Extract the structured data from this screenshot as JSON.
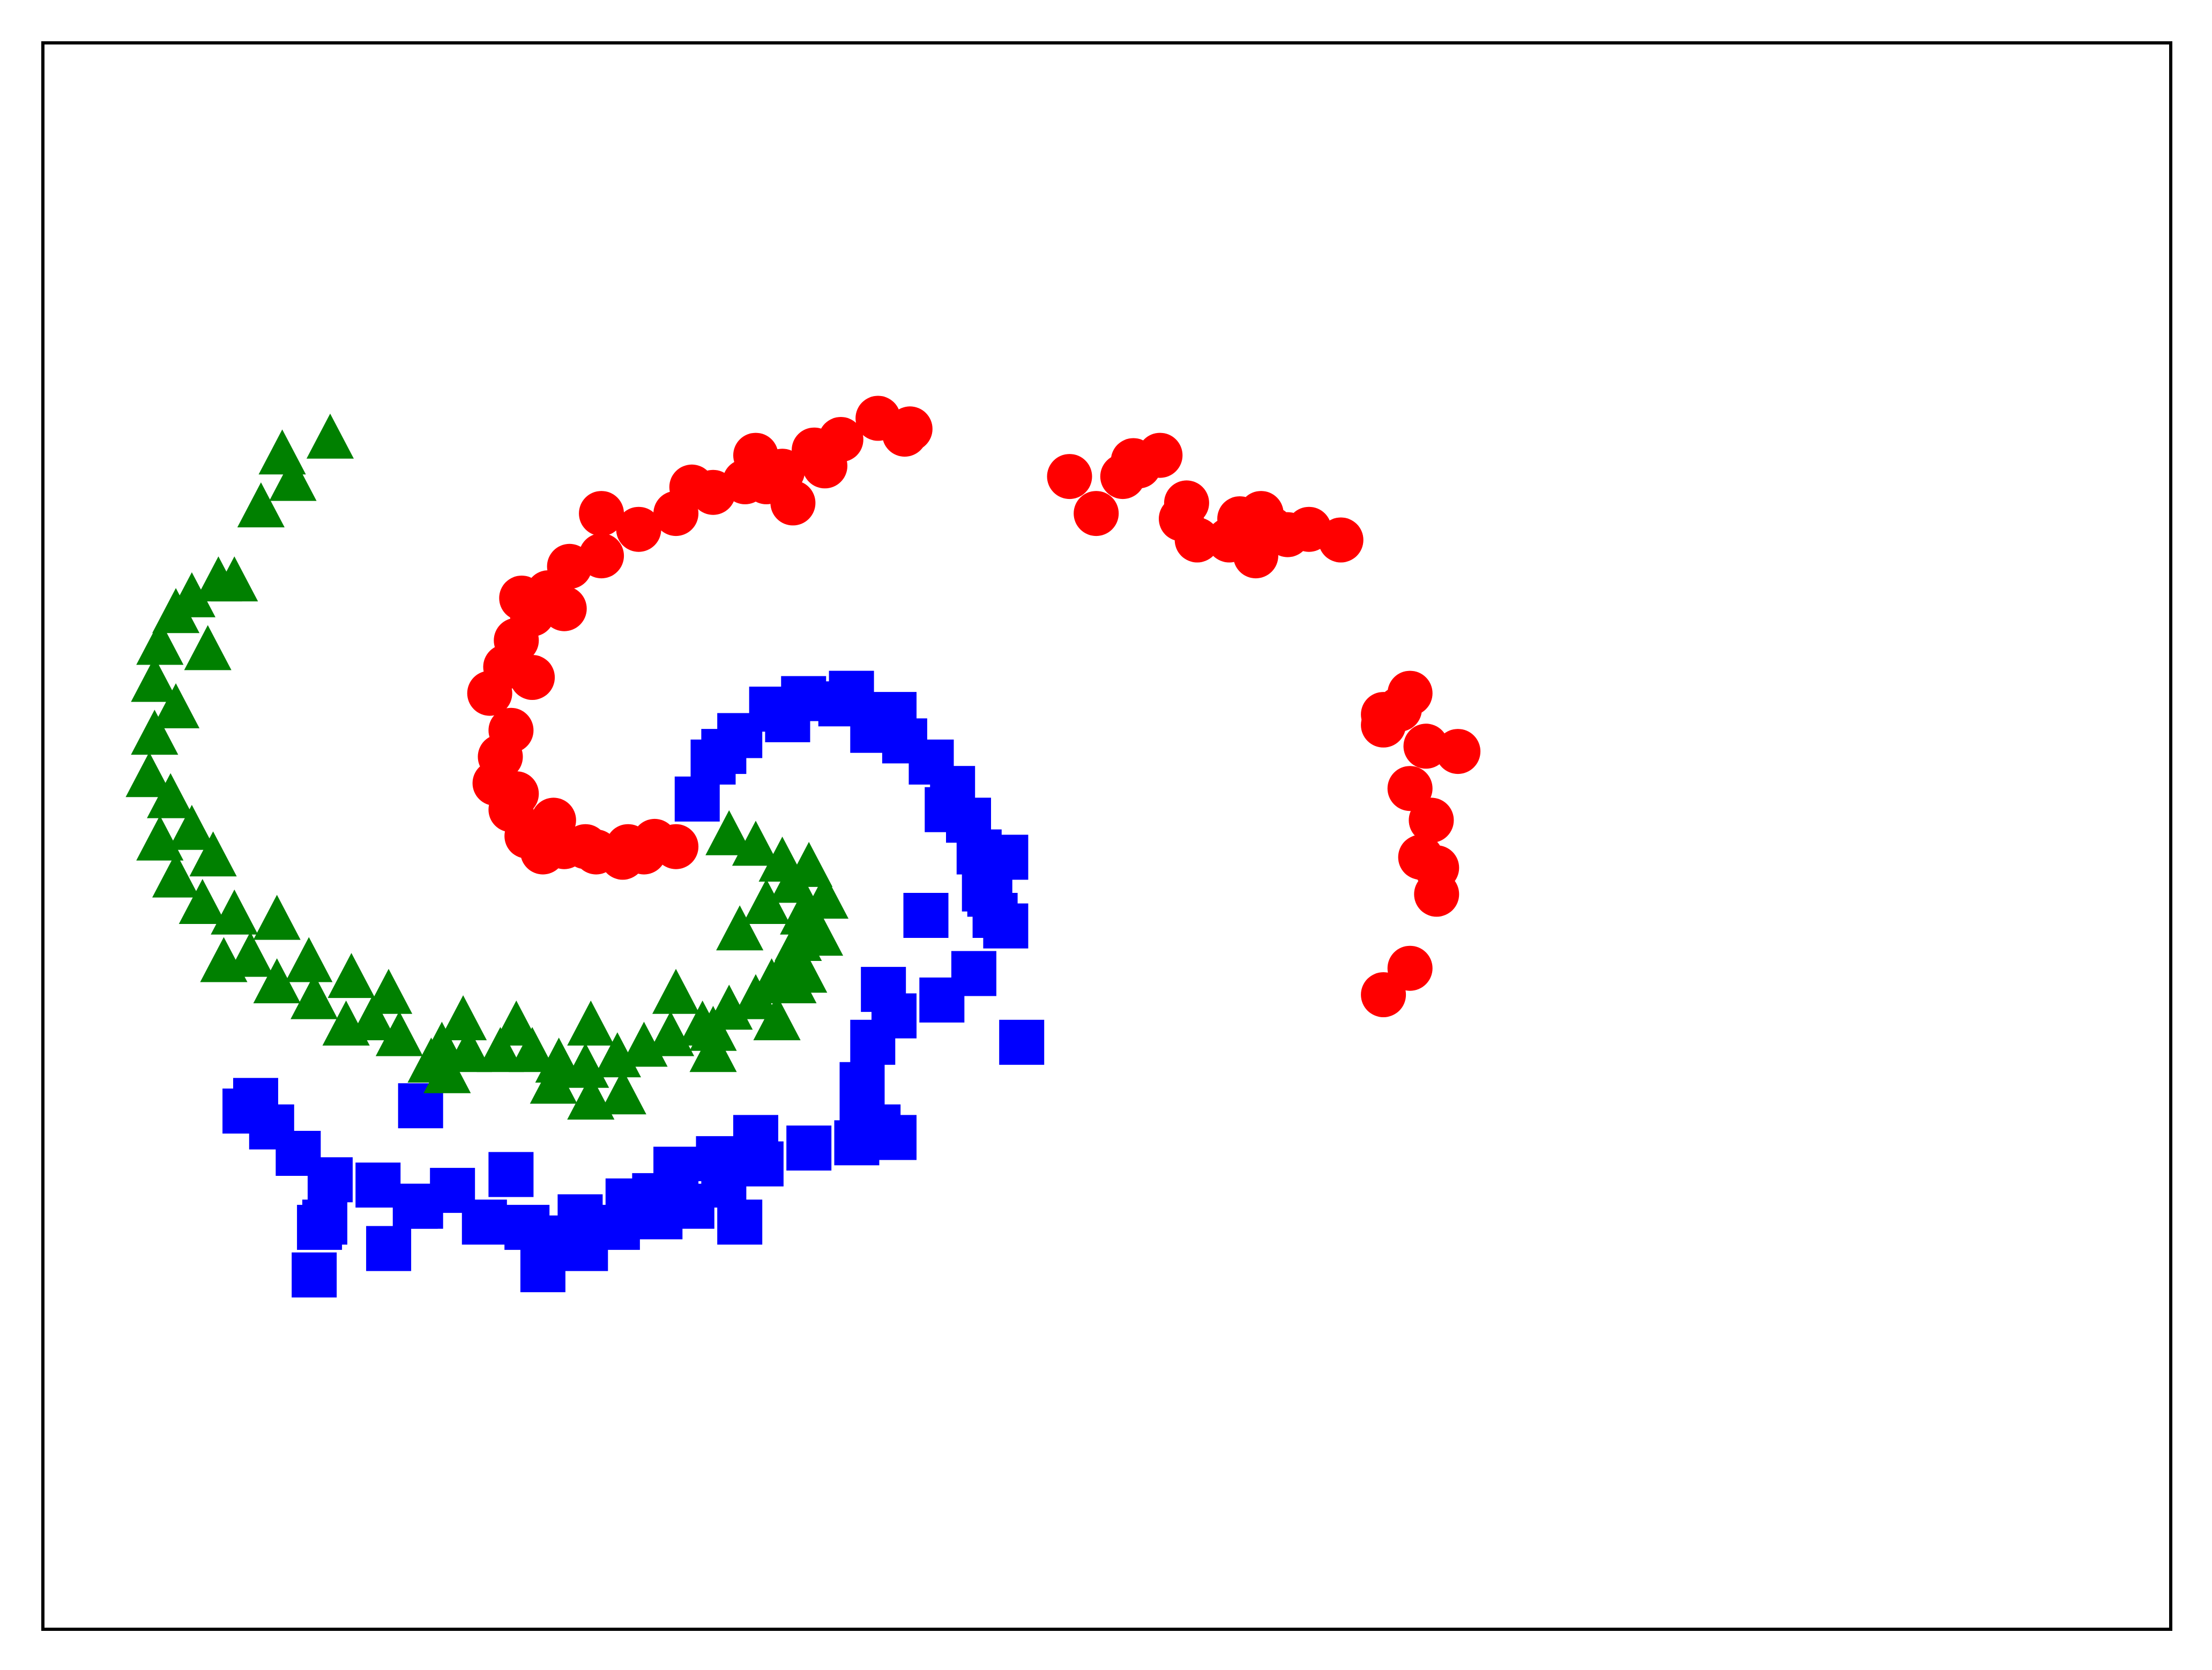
{
  "chart_data": {
    "type": "scatter",
    "title": "",
    "xlabel": "",
    "ylabel": "",
    "xlim": [
      -1.5,
      2.5
    ],
    "ylim": [
      -1.5,
      1.5
    ],
    "grid": false,
    "show_ticks": false,
    "legend": "none",
    "series": [
      {
        "marker": "circle",
        "color": "#ff0000",
        "points": [
          [
            -0.31,
            -0.02
          ],
          [
            -0.37,
            -0.03
          ],
          [
            -0.41,
            -0.04
          ],
          [
            -0.46,
            -0.03
          ],
          [
            -0.52,
            -0.02
          ],
          [
            -0.56,
            -0.03
          ],
          [
            -0.59,
            0.0
          ],
          [
            -0.62,
            0.05
          ],
          [
            -0.65,
            0.1
          ],
          [
            -0.64,
            0.15
          ],
          [
            -0.62,
            0.2
          ],
          [
            -0.66,
            0.27
          ],
          [
            -0.63,
            0.32
          ],
          [
            -0.61,
            0.37
          ],
          [
            -0.58,
            0.42
          ],
          [
            -0.55,
            0.46
          ],
          [
            -0.51,
            0.51
          ],
          [
            -0.45,
            0.53
          ],
          [
            -0.38,
            0.58
          ],
          [
            -0.31,
            0.61
          ],
          [
            -0.24,
            0.65
          ],
          [
            -0.18,
            0.67
          ],
          [
            -0.11,
            0.69
          ],
          [
            -0.05,
            0.73
          ],
          [
            0.0,
            0.75
          ],
          [
            0.07,
            0.79
          ],
          [
            0.12,
            0.76
          ],
          [
            -0.09,
            0.63
          ],
          [
            -0.28,
            0.66
          ],
          [
            -0.45,
            0.61
          ],
          [
            -0.6,
            0.45
          ],
          [
            -0.54,
            0.03
          ],
          [
            -0.35,
            -0.01
          ],
          [
            -0.14,
            0.67
          ],
          [
            -0.03,
            0.7
          ],
          [
            0.13,
            0.77
          ],
          [
            -0.16,
            0.72
          ],
          [
            -0.52,
            0.43
          ],
          [
            -0.58,
            0.3
          ],
          [
            -0.61,
            0.08
          ],
          [
            -0.48,
            -0.02
          ],
          [
            -0.4,
            -0.02
          ],
          [
            0.43,
            0.68
          ],
          [
            0.56,
            0.7
          ],
          [
            0.6,
            0.72
          ],
          [
            0.53,
            0.68
          ],
          [
            0.64,
            0.6
          ],
          [
            0.65,
            0.63
          ],
          [
            0.67,
            0.56
          ],
          [
            0.75,
            0.6
          ],
          [
            0.81,
            0.58
          ],
          [
            0.78,
            0.53
          ],
          [
            0.84,
            0.57
          ],
          [
            0.79,
            0.61
          ],
          [
            0.88,
            0.58
          ],
          [
            0.94,
            0.56
          ],
          [
            0.48,
            0.61
          ],
          [
            0.55,
            0.71
          ],
          [
            0.73,
            0.56
          ],
          [
            1.02,
            0.21
          ],
          [
            1.05,
            0.24
          ],
          [
            1.07,
            0.27
          ],
          [
            1.16,
            0.16
          ],
          [
            1.1,
            0.17
          ],
          [
            1.02,
            0.23
          ],
          [
            1.07,
            0.09
          ],
          [
            1.11,
            0.03
          ],
          [
            1.09,
            -0.04
          ],
          [
            1.12,
            -0.06
          ],
          [
            1.12,
            -0.11
          ],
          [
            1.07,
            -0.25
          ],
          [
            1.02,
            -0.3
          ]
        ]
      },
      {
        "marker": "square",
        "color": "#0000ff",
        "points": [
          [
            -0.27,
            0.07
          ],
          [
            -0.24,
            0.14
          ],
          [
            -0.19,
            0.19
          ],
          [
            -0.13,
            0.24
          ],
          [
            -0.07,
            0.26
          ],
          [
            0.0,
            0.25
          ],
          [
            0.06,
            0.2
          ],
          [
            0.12,
            0.18
          ],
          [
            0.17,
            0.14
          ],
          [
            0.21,
            0.09
          ],
          [
            0.24,
            0.03
          ],
          [
            0.26,
            -0.03
          ],
          [
            0.27,
            -0.1
          ],
          [
            0.29,
            -0.15
          ],
          [
            0.31,
            -0.17
          ],
          [
            0.25,
            -0.26
          ],
          [
            0.19,
            -0.31
          ],
          [
            0.1,
            -0.34
          ],
          [
            0.06,
            -0.39
          ],
          [
            0.04,
            -0.47
          ],
          [
            0.04,
            -0.53
          ],
          [
            0.03,
            -0.58
          ],
          [
            -0.06,
            -0.59
          ],
          [
            -0.15,
            -0.62
          ],
          [
            -0.22,
            -0.66
          ],
          [
            -0.28,
            -0.7
          ],
          [
            -0.34,
            -0.72
          ],
          [
            -0.42,
            -0.74
          ],
          [
            -0.48,
            -0.78
          ],
          [
            -0.54,
            -0.76
          ],
          [
            -0.59,
            -0.74
          ],
          [
            -0.67,
            -0.73
          ],
          [
            -0.73,
            -0.67
          ],
          [
            -0.79,
            -0.7
          ],
          [
            -0.87,
            -0.66
          ],
          [
            -0.96,
            -0.65
          ],
          [
            -1.02,
            -0.6
          ],
          [
            -1.07,
            -0.55
          ],
          [
            -1.1,
            -0.5
          ],
          [
            -0.79,
            -0.51
          ],
          [
            -0.97,
            -0.73
          ],
          [
            -0.99,
            -0.83
          ],
          [
            -0.8,
            -0.7
          ],
          [
            -0.56,
            -0.82
          ],
          [
            -0.49,
            -0.72
          ],
          [
            -0.4,
            -0.69
          ],
          [
            -0.31,
            -0.63
          ],
          [
            -0.23,
            -0.61
          ],
          [
            -0.16,
            -0.57
          ],
          [
            0.34,
            -0.39
          ],
          [
            0.28,
            -0.11
          ],
          [
            0.31,
            -0.04
          ],
          [
            0.1,
            -0.57
          ],
          [
            0.08,
            -0.29
          ],
          [
            0.2,
            0.05
          ],
          [
            -0.1,
            0.22
          ],
          [
            0.02,
            0.27
          ],
          [
            0.1,
            0.23
          ],
          [
            -0.22,
            0.16
          ],
          [
            0.16,
            -0.15
          ],
          [
            0.07,
            -0.55
          ],
          [
            -0.19,
            -0.73
          ],
          [
            -0.35,
            -0.68
          ],
          [
            -0.62,
            -0.64
          ],
          [
            -0.98,
            -0.74
          ],
          [
            -1.12,
            -0.52
          ],
          [
            -0.85,
            -0.78
          ]
        ]
      },
      {
        "marker": "triangle",
        "color": "#008000",
        "points": [
          [
            -0.21,
            0.0
          ],
          [
            -0.16,
            -0.02
          ],
          [
            -0.11,
            -0.05
          ],
          [
            -0.09,
            -0.09
          ],
          [
            -0.07,
            -0.15
          ],
          [
            -0.08,
            -0.2
          ],
          [
            -0.1,
            -0.24
          ],
          [
            -0.13,
            -0.28
          ],
          [
            -0.16,
            -0.31
          ],
          [
            -0.21,
            -0.33
          ],
          [
            -0.26,
            -0.36
          ],
          [
            -0.32,
            -0.38
          ],
          [
            -0.37,
            -0.4
          ],
          [
            -0.42,
            -0.42
          ],
          [
            -0.48,
            -0.44
          ],
          [
            -0.53,
            -0.43
          ],
          [
            -0.58,
            -0.41
          ],
          [
            -0.64,
            -0.41
          ],
          [
            -0.7,
            -0.41
          ],
          [
            -0.75,
            -0.4
          ],
          [
            -0.83,
            -0.38
          ],
          [
            -0.88,
            -0.35
          ],
          [
            -0.93,
            -0.36
          ],
          [
            -0.99,
            -0.31
          ],
          [
            -1.06,
            -0.28
          ],
          [
            -1.11,
            -0.23
          ],
          [
            -1.14,
            -0.15
          ],
          [
            -1.2,
            -0.13
          ],
          [
            -1.25,
            -0.08
          ],
          [
            -1.28,
            -0.01
          ],
          [
            -1.26,
            0.07
          ],
          [
            -1.3,
            0.11
          ],
          [
            -1.29,
            0.19
          ],
          [
            -1.25,
            0.24
          ],
          [
            -1.29,
            0.29
          ],
          [
            -1.28,
            0.36
          ],
          [
            -1.25,
            0.42
          ],
          [
            -1.22,
            0.45
          ],
          [
            -1.17,
            0.48
          ],
          [
            -1.14,
            0.48
          ],
          [
            -1.09,
            0.62
          ],
          [
            -1.05,
            0.72
          ],
          [
            -1.03,
            0.67
          ],
          [
            -0.96,
            0.75
          ],
          [
            -1.22,
            0.01
          ],
          [
            -1.18,
            -0.04
          ],
          [
            -1.06,
            -0.16
          ],
          [
            -1.0,
            -0.24
          ],
          [
            -0.85,
            -0.3
          ],
          [
            -0.71,
            -0.35
          ],
          [
            -0.61,
            -0.36
          ],
          [
            -0.47,
            -0.36
          ],
          [
            -0.31,
            -0.3
          ],
          [
            -0.19,
            -0.18
          ],
          [
            -0.14,
            -0.13
          ],
          [
            -0.06,
            -0.06
          ],
          [
            -0.03,
            -0.12
          ],
          [
            -0.04,
            -0.19
          ],
          [
            -0.07,
            -0.26
          ],
          [
            -0.12,
            -0.35
          ],
          [
            -0.24,
            -0.41
          ],
          [
            -0.41,
            -0.49
          ],
          [
            -0.54,
            -0.47
          ],
          [
            -0.74,
            -0.45
          ],
          [
            -1.19,
            0.35
          ],
          [
            -1.16,
            -0.24
          ],
          [
            -0.92,
            -0.27
          ],
          [
            -0.77,
            -0.43
          ],
          [
            -0.47,
            -0.5
          ],
          [
            -0.24,
            -0.37
          ],
          [
            -0.09,
            -0.28
          ]
        ]
      }
    ]
  }
}
